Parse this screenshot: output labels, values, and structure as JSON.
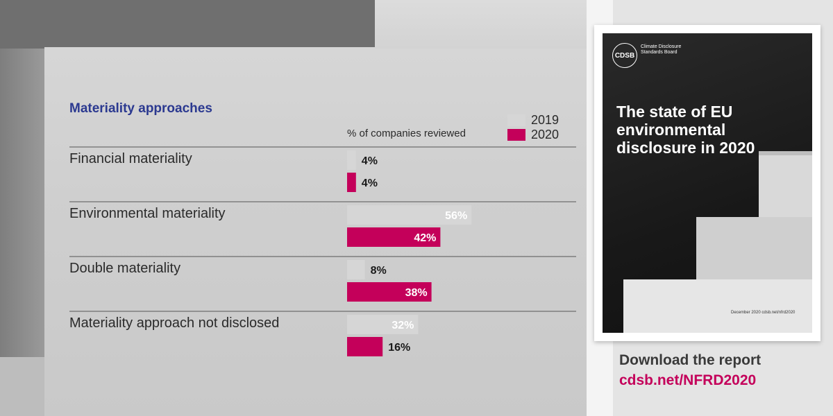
{
  "colors": {
    "series_2019": "#d6d6d6",
    "series_2020": "#c4005a",
    "title": "#2b3990",
    "url": "#c4005a"
  },
  "chart_data": {
    "type": "bar",
    "orientation": "horizontal",
    "title": "Materiality approaches",
    "unit_label": "% of companies reviewed",
    "categories": [
      "Financial materiality",
      "Environmental materiality",
      "Double materiality",
      "Materiality approach not disclosed"
    ],
    "series": [
      {
        "name": "2019",
        "values": [
          4,
          56,
          8,
          32
        ],
        "labels": [
          "4%",
          "56%",
          "8%",
          "32%"
        ]
      },
      {
        "name": "2020",
        "values": [
          4,
          42,
          38,
          16
        ],
        "labels": [
          "4%",
          "42%",
          "38%",
          "16%"
        ]
      }
    ],
    "xlim": [
      0,
      100
    ],
    "legend": "top-right",
    "grid": false
  },
  "cover": {
    "logo_text": "CDSB",
    "org_name": "Climate Disclosure Standards Board",
    "title": "The state of EU environmental disclosure in 2020",
    "footer": "December 2020  cdsb.net/nfrd2020"
  },
  "download": {
    "label": "Download the report",
    "url": "cdsb.net/NFRD2020"
  }
}
